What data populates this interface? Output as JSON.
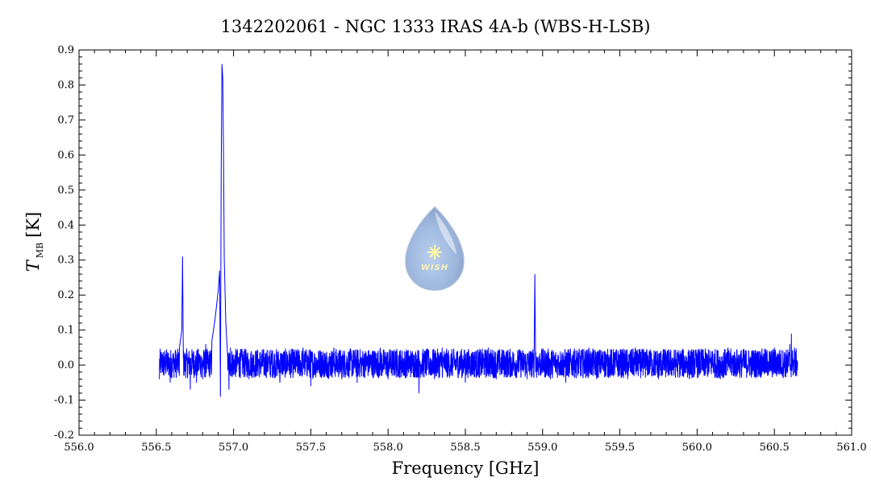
{
  "chart_data": {
    "type": "line",
    "title": "1342202061 - NGC 1333 IRAS 4A-b (WBS-H-LSB)",
    "xlabel": "Frequency [GHz]",
    "ylabel_main": "T",
    "ylabel_sub": "MB",
    "ylabel_unit": "[K]",
    "xlim": [
      556.0,
      561.0
    ],
    "ylim": [
      -0.2,
      0.9
    ],
    "x_ticks": [
      "556.0",
      "556.5",
      "557.0",
      "557.5",
      "558.0",
      "558.5",
      "559.0",
      "559.5",
      "560.0",
      "560.5",
      "561.0"
    ],
    "y_ticks": [
      "-0.2",
      "-0.1",
      "0.0",
      "0.1",
      "0.2",
      "0.3",
      "0.4",
      "0.5",
      "0.6",
      "0.7",
      "0.8",
      "0.9"
    ],
    "series_color": "#0000ff",
    "series": [
      {
        "values": [
          [
            556.52,
            -0.04
          ],
          [
            556.53,
            0.02
          ],
          [
            556.55,
            -0.03
          ],
          [
            556.57,
            0.03
          ],
          [
            556.59,
            -0.05
          ],
          [
            556.61,
            0.02
          ],
          [
            556.63,
            -0.02
          ],
          [
            556.65,
            0.05
          ],
          [
            556.665,
            0.1
          ],
          [
            556.67,
            0.31
          ],
          [
            556.675,
            0.02
          ],
          [
            556.68,
            -0.03
          ],
          [
            556.7,
            0.03
          ],
          [
            556.72,
            -0.07
          ],
          [
            556.74,
            0.04
          ],
          [
            556.76,
            -0.05
          ],
          [
            556.78,
            0.03
          ],
          [
            556.8,
            -0.04
          ],
          [
            556.82,
            0.06
          ],
          [
            556.84,
            -0.02
          ],
          [
            556.86,
            0.07
          ],
          [
            556.88,
            0.13
          ],
          [
            556.9,
            0.21
          ],
          [
            556.91,
            0.27
          ],
          [
            556.915,
            -0.09
          ],
          [
            556.92,
            0.55
          ],
          [
            556.925,
            0.86
          ],
          [
            556.93,
            0.82
          ],
          [
            556.935,
            0.6
          ],
          [
            556.94,
            0.3
          ],
          [
            556.95,
            0.12
          ],
          [
            556.96,
            0.04
          ],
          [
            556.97,
            -0.07
          ],
          [
            556.98,
            0.05
          ],
          [
            557.0,
            -0.02
          ],
          [
            557.05,
            0.04
          ],
          [
            557.1,
            -0.04
          ],
          [
            557.15,
            0.03
          ],
          [
            557.2,
            -0.03
          ],
          [
            557.25,
            0.04
          ],
          [
            557.3,
            -0.05
          ],
          [
            557.35,
            0.03
          ],
          [
            557.4,
            -0.02
          ],
          [
            557.45,
            0.05
          ],
          [
            557.5,
            -0.06
          ],
          [
            557.55,
            0.04
          ],
          [
            557.6,
            -0.03
          ],
          [
            557.65,
            0.05
          ],
          [
            557.7,
            -0.04
          ],
          [
            557.75,
            0.04
          ],
          [
            557.8,
            -0.05
          ],
          [
            557.85,
            0.03
          ],
          [
            557.9,
            -0.03
          ],
          [
            557.95,
            0.05
          ],
          [
            558.0,
            -0.04
          ],
          [
            558.05,
            0.04
          ],
          [
            558.1,
            -0.03
          ],
          [
            558.15,
            0.03
          ],
          [
            558.2,
            -0.08
          ],
          [
            558.25,
            0.04
          ],
          [
            558.3,
            -0.04
          ],
          [
            558.35,
            0.05
          ],
          [
            558.4,
            -0.03
          ],
          [
            558.45,
            0.04
          ],
          [
            558.5,
            -0.05
          ],
          [
            558.55,
            0.03
          ],
          [
            558.6,
            -0.03
          ],
          [
            558.65,
            0.05
          ],
          [
            558.7,
            -0.04
          ],
          [
            558.75,
            0.04
          ],
          [
            558.8,
            -0.03
          ],
          [
            558.85,
            0.03
          ],
          [
            558.9,
            -0.04
          ],
          [
            558.945,
            0.02
          ],
          [
            558.95,
            0.26
          ],
          [
            558.955,
            -0.02
          ],
          [
            559.0,
            0.04
          ],
          [
            559.05,
            -0.04
          ],
          [
            559.1,
            0.03
          ],
          [
            559.15,
            -0.05
          ],
          [
            559.2,
            0.04
          ],
          [
            559.25,
            -0.03
          ],
          [
            559.3,
            0.05
          ],
          [
            559.35,
            -0.04
          ],
          [
            559.4,
            0.04
          ],
          [
            559.45,
            -0.03
          ],
          [
            559.5,
            0.03
          ],
          [
            559.55,
            -0.04
          ],
          [
            559.6,
            0.05
          ],
          [
            559.65,
            -0.03
          ],
          [
            559.7,
            0.04
          ],
          [
            559.75,
            -0.04
          ],
          [
            559.8,
            0.03
          ],
          [
            559.85,
            -0.03
          ],
          [
            559.9,
            0.04
          ],
          [
            559.95,
            -0.04
          ],
          [
            560.0,
            0.03
          ],
          [
            560.05,
            -0.03
          ],
          [
            560.1,
            0.04
          ],
          [
            560.15,
            -0.04
          ],
          [
            560.2,
            0.05
          ],
          [
            560.25,
            -0.03
          ],
          [
            560.3,
            0.04
          ],
          [
            560.35,
            -0.03
          ],
          [
            560.4,
            0.04
          ],
          [
            560.45,
            -0.02
          ],
          [
            560.5,
            0.05
          ],
          [
            560.55,
            -0.02
          ],
          [
            560.58,
            0.03
          ],
          [
            560.6,
            0.06
          ],
          [
            560.61,
            0.09
          ],
          [
            560.62,
            0.02
          ],
          [
            560.63,
            0.05
          ],
          [
            560.64,
            -0.01
          ],
          [
            560.65,
            0.01
          ]
        ]
      }
    ],
    "grid": false,
    "watermark_text": "WISH"
  }
}
